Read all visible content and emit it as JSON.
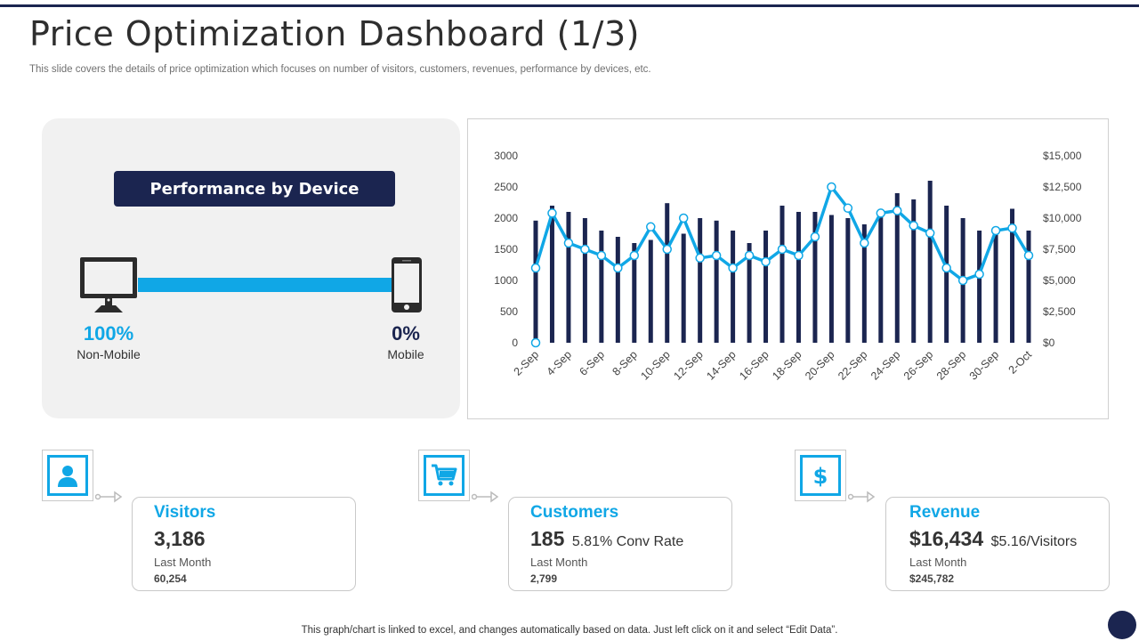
{
  "header": {
    "title": "Price Optimization Dashboard (1/3)",
    "subtitle": "This slide covers the details of price optimization which focuses on number of visitors, customers, revenues, performance by devices, etc."
  },
  "device_panel": {
    "title": "Performance by Device",
    "non_mobile": {
      "percent": "100%",
      "label": "Non-Mobile",
      "icon": "desktop-monitor-icon"
    },
    "mobile": {
      "percent": "0%",
      "label": "Mobile",
      "icon": "smartphone-icon"
    }
  },
  "chart_data": {
    "type": "bar",
    "x": [
      "2-Sep",
      "3-Sep",
      "4-Sep",
      "5-Sep",
      "6-Sep",
      "7-Sep",
      "8-Sep",
      "9-Sep",
      "10-Sep",
      "11-Sep",
      "12-Sep",
      "13-Sep",
      "14-Sep",
      "15-Sep",
      "16-Sep",
      "17-Sep",
      "18-Sep",
      "19-Sep",
      "20-Sep",
      "21-Sep",
      "22-Sep",
      "23-Sep",
      "24-Sep",
      "25-Sep",
      "26-Sep",
      "27-Sep",
      "28-Sep",
      "29-Sep",
      "30-Sep",
      "1-Oct",
      "2-Oct"
    ],
    "x_tick_labels": [
      "2-Sep",
      "4-Sep",
      "6-Sep",
      "8-Sep",
      "10-Sep",
      "12-Sep",
      "14-Sep",
      "16-Sep",
      "18-Sep",
      "20-Sep",
      "22-Sep",
      "24-Sep",
      "26-Sep",
      "28-Sep",
      "30-Sep",
      "2-Oct"
    ],
    "series": [
      {
        "kind": "bar",
        "axis": "left",
        "color": "#1b2550",
        "values": [
          1960,
          2200,
          2100,
          2000,
          1800,
          1700,
          1600,
          1650,
          2240,
          1750,
          2000,
          1960,
          1800,
          1600,
          1800,
          2200,
          2100,
          2100,
          2050,
          2000,
          1900,
          2050,
          2400,
          2300,
          2600,
          2200,
          2000,
          1800,
          1800,
          2150,
          1800
        ]
      },
      {
        "kind": "line",
        "axis": "right",
        "color": "#10a7e6",
        "values": [
          6000,
          10400,
          8000,
          7500,
          7000,
          6000,
          7000,
          9300,
          7500,
          10000,
          6800,
          7000,
          6000,
          7000,
          6500,
          7500,
          7000,
          8500,
          12500,
          10800,
          8000,
          10400,
          10600,
          9400,
          8800,
          6000,
          5000,
          5500,
          9000,
          9200,
          7000
        ]
      }
    ],
    "y_left": {
      "min": 0,
      "max": 3000,
      "ticks": [
        "0",
        "500",
        "1000",
        "1500",
        "2000",
        "2500",
        "3000"
      ]
    },
    "y_right": {
      "min": 0,
      "max": 15000,
      "ticks": [
        "$0",
        "$2,500",
        "$5,000",
        "$7,500",
        "$10,000",
        "$12,500",
        "$15,000"
      ]
    },
    "first_point_outlier": 0,
    "grid": false
  },
  "kpis": [
    {
      "title": "Visitors",
      "value": "3,186",
      "extra": "",
      "period": "Last Month",
      "previous": "60,254",
      "icon": "user-icon"
    },
    {
      "title": "Customers",
      "value": "185",
      "extra": "5.81% Conv Rate",
      "period": "Last Month",
      "previous": "2,799",
      "icon": "shopping-cart-icon"
    },
    {
      "title": "Revenue",
      "value": "$16,434",
      "extra": "$5.16/Visitors",
      "period": "Last Month",
      "previous": "$245,782",
      "icon": "dollar-icon"
    }
  ],
  "footer": {
    "note": "This graph/chart is linked to excel, and changes automatically based on data. Just left click on it and select “Edit Data”."
  },
  "colors": {
    "navy": "#1b2550",
    "accent": "#10a7e6"
  }
}
